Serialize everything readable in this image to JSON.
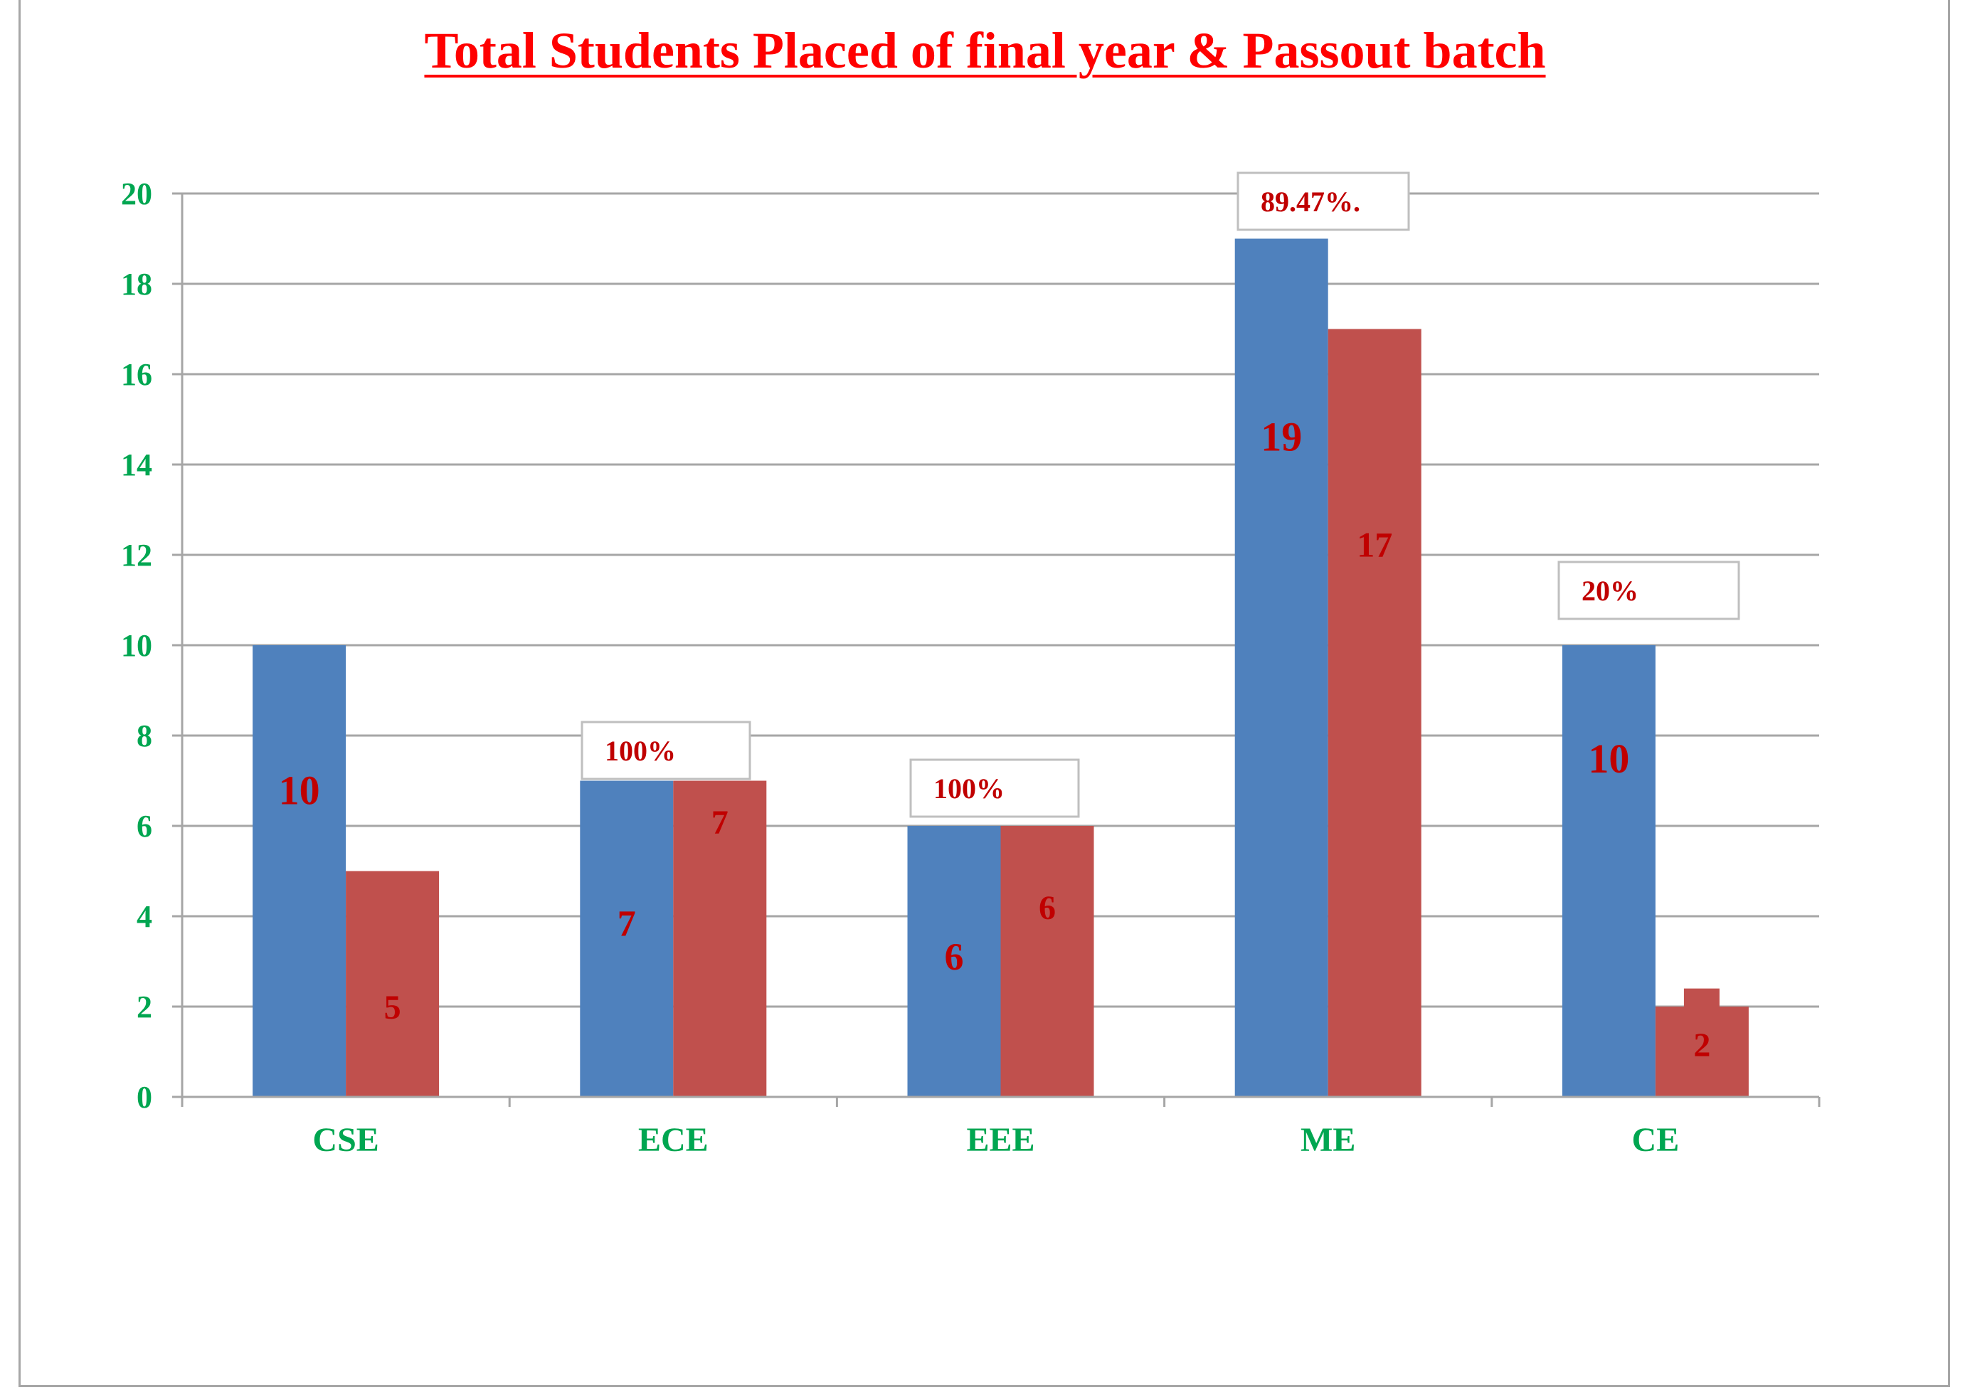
{
  "chart_data": {
    "type": "bar",
    "title": "Total Students Placed of final year & Passout batch",
    "categories": [
      "CSE",
      "ECE",
      "EEE",
      "ME",
      "CE"
    ],
    "series": [
      {
        "values": [
          10,
          7,
          6,
          19,
          10
        ],
        "color": "#4f81bd",
        "label_color": "#c00000"
      },
      {
        "values": [
          5,
          7,
          6,
          17,
          2
        ],
        "color": "#c0504d",
        "label_color": "#c00000"
      }
    ],
    "data_labels": [
      [
        "10",
        "7",
        "6",
        "19",
        "10"
      ],
      [
        "5",
        "7",
        "6",
        "17",
        "2"
      ]
    ],
    "annotations": [
      {
        "category": "ECE",
        "text": "100%"
      },
      {
        "category": "EEE",
        "text": "100%"
      },
      {
        "category": "ME",
        "text": "89.47%."
      },
      {
        "category": "CE",
        "text": "20%"
      }
    ],
    "ylim": [
      0,
      20
    ],
    "yticks": [
      "0",
      "2",
      "4",
      "6",
      "8",
      "10",
      "12",
      "14",
      "16",
      "18",
      "20"
    ],
    "xlabel": "",
    "ylabel": "",
    "grid": true,
    "colors": {
      "title": "#ff0000",
      "ticks": "#00a651",
      "labels": "#c00000",
      "grid": "#a6a6a6"
    }
  }
}
